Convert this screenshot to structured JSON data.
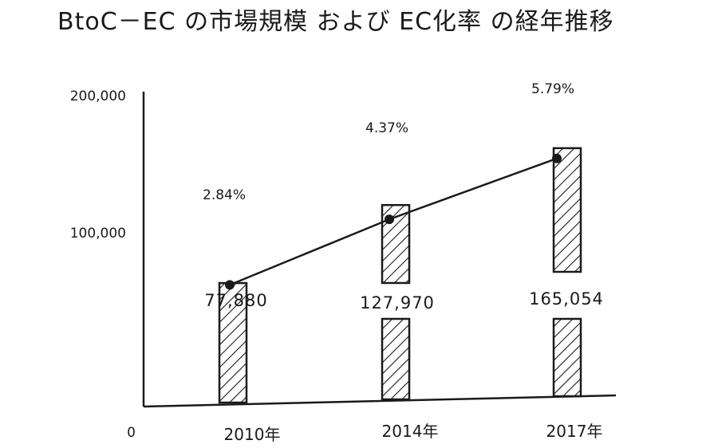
{
  "chart_data": {
    "type": "bar",
    "title": "BtoC－EC の市場規模 および EC化率 の経年推移",
    "categories": [
      "2010年",
      "2014年",
      "2017年"
    ],
    "series": [
      {
        "values": [
          77880,
          127970,
          165054
        ]
      },
      {
        "values": [
          2.84,
          4.37,
          5.79
        ]
      }
    ],
    "value_labels": [
      "77,880",
      "127,970",
      "165,054"
    ],
    "rate_labels": [
      "2.84%",
      "4.37%",
      "5.79%"
    ],
    "y_ticks": [
      "0",
      "100,000",
      "200,000"
    ],
    "ylim": [
      0,
      200000
    ],
    "line_ylim": [
      0,
      8
    ],
    "grid": false,
    "ink_color": "#1a1a1a"
  }
}
